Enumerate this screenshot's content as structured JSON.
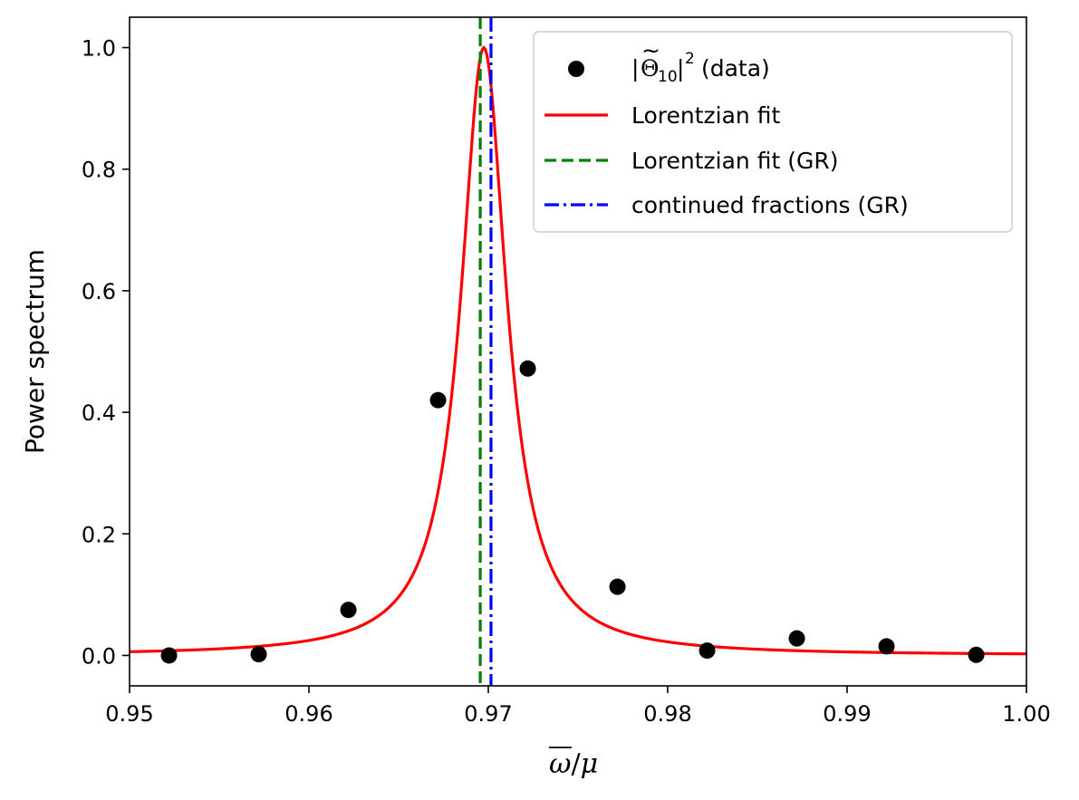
{
  "chart_data": {
    "type": "scatter",
    "title": "",
    "xlabel": "ω̅/μ",
    "ylabel": "Power spectrum",
    "xlim": [
      0.95,
      1.0
    ],
    "ylim": [
      -0.05,
      1.05
    ],
    "grid": false,
    "legend_position": "top-right",
    "x_ticks": [
      {
        "value": 0.95,
        "label": "0.95"
      },
      {
        "value": 0.96,
        "label": "0.96"
      },
      {
        "value": 0.97,
        "label": "0.97"
      },
      {
        "value": 0.98,
        "label": "0.98"
      },
      {
        "value": 0.99,
        "label": "0.99"
      },
      {
        "value": 1.0,
        "label": "1.00"
      }
    ],
    "y_ticks": [
      {
        "value": 0.0,
        "label": "0.0"
      },
      {
        "value": 0.2,
        "label": "0.2"
      },
      {
        "value": 0.4,
        "label": "0.4"
      },
      {
        "value": 0.6,
        "label": "0.6"
      },
      {
        "value": 0.8,
        "label": "0.8"
      },
      {
        "value": 1.0,
        "label": "1.0"
      }
    ],
    "series": [
      {
        "name": "|Θ̃10|2 (data)",
        "kind": "scatter",
        "color": "#000000",
        "points": [
          {
            "x": 0.9522,
            "y": 0.0
          },
          {
            "x": 0.9572,
            "y": 0.002
          },
          {
            "x": 0.9622,
            "y": 0.075
          },
          {
            "x": 0.9672,
            "y": 0.42
          },
          {
            "x": 0.9722,
            "y": 0.472
          },
          {
            "x": 0.9772,
            "y": 0.113
          },
          {
            "x": 0.9822,
            "y": 0.008
          },
          {
            "x": 0.9872,
            "y": 0.028
          },
          {
            "x": 0.9922,
            "y": 0.015
          },
          {
            "x": 0.9972,
            "y": 0.001
          }
        ]
      },
      {
        "name": "Lorentzian fit",
        "kind": "lorentzian",
        "color": "#ff0000",
        "center": 0.96975,
        "half_width": 0.00155,
        "amplitude": 1.0,
        "x_range": [
          0.95,
          1.0
        ]
      },
      {
        "name": "Lorentzian fit (GR)",
        "kind": "vline",
        "color": "#008000",
        "x": 0.96955
      },
      {
        "name": "continued fractions (GR)",
        "kind": "vline",
        "color": "#0000ff",
        "x": 0.97015
      }
    ]
  },
  "legend": {
    "scatter_label_prefix": "|",
    "scatter_label_symbol": "Θ",
    "scatter_label_tilde": "~",
    "scatter_label_subscript": "10",
    "scatter_label_bar": "|",
    "scatter_label_superscript": "2",
    "scatter_label_suffix": " (data)",
    "fit_label": "Lorentzian fit",
    "fit_gr_label": "Lorentzian fit (GR)",
    "cf_label": "continued fractions (GR)"
  },
  "axes": {
    "ylabel": "Power spectrum",
    "xlabel_omega": "ω",
    "xlabel_slash": "/",
    "xlabel_mu": "μ"
  }
}
